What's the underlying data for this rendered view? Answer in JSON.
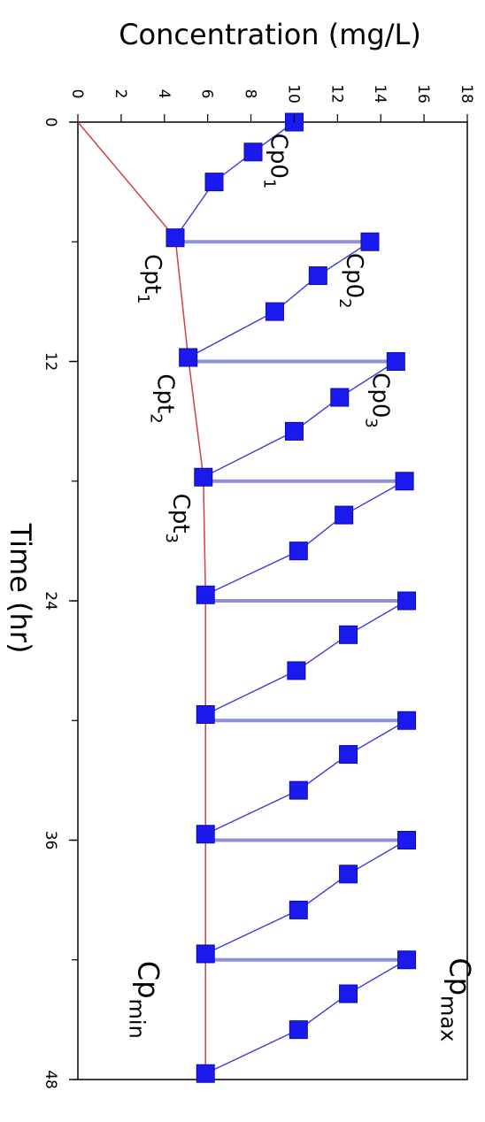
{
  "chart_data": {
    "type": "line",
    "orientation": "rotated-90",
    "xlabel": "Time (hr)",
    "ylabel": "Concentration (mg/L)",
    "xlim": [
      0,
      48
    ],
    "ylim": [
      0,
      18
    ],
    "x_ticks": [
      "0",
      "12",
      "24",
      "36",
      "48"
    ],
    "y_ticks": [
      "0",
      "2",
      "4",
      "6",
      "8",
      "10",
      "12",
      "14",
      "16",
      "18"
    ],
    "grid": false,
    "dosing_interval_hr": 6,
    "series": [
      {
        "name": "",
        "style": "blue line with square markers",
        "color": "#1a1aee",
        "points": [
          [
            0,
            10
          ],
          [
            1.5,
            8.1
          ],
          [
            3,
            6.3
          ],
          [
            5.8,
            4.5
          ],
          [
            6,
            13.5
          ],
          [
            7.7,
            11.1
          ],
          [
            9.5,
            9.1
          ],
          [
            11.8,
            5.1
          ],
          [
            12,
            14.7
          ],
          [
            13.8,
            12.1
          ],
          [
            15.5,
            10
          ],
          [
            17.8,
            5.8
          ],
          [
            18,
            15.1
          ],
          [
            19.7,
            12.3
          ],
          [
            21.5,
            10.2
          ],
          [
            23.7,
            5.9
          ],
          [
            24,
            15.2
          ],
          [
            25.7,
            12.5
          ],
          [
            27.5,
            10.1
          ],
          [
            29.7,
            5.9
          ],
          [
            30,
            15.2
          ],
          [
            31.7,
            12.5
          ],
          [
            33.5,
            10.2
          ],
          [
            35.7,
            5.9
          ],
          [
            36,
            15.2
          ],
          [
            37.7,
            12.5
          ],
          [
            39.5,
            10.2
          ],
          [
            41.7,
            5.9
          ],
          [
            42,
            15.2
          ],
          [
            43.7,
            12.5
          ],
          [
            45.5,
            10.2
          ],
          [
            47.7,
            5.9
          ]
        ]
      },
      {
        "name": "",
        "style": "red line (trough trend)",
        "color": "#d04040",
        "points": [
          [
            0,
            0
          ],
          [
            5.8,
            4.5
          ],
          [
            11.8,
            5.1
          ],
          [
            17.8,
            5.8
          ],
          [
            23.7,
            5.9
          ],
          [
            29.7,
            5.9
          ],
          [
            35.7,
            5.9
          ],
          [
            41.7,
            5.9
          ],
          [
            47.7,
            5.9
          ]
        ]
      }
    ],
    "dose_lines": [
      {
        "x": 6,
        "from": 4.5,
        "to": 13.5
      },
      {
        "x": 12,
        "from": 5.1,
        "to": 14.7
      },
      {
        "x": 18,
        "from": 5.8,
        "to": 15.1
      },
      {
        "x": 24,
        "from": 5.9,
        "to": 15.2
      },
      {
        "x": 30,
        "from": 5.9,
        "to": 15.2
      },
      {
        "x": 36,
        "from": 5.9,
        "to": 15.2
      },
      {
        "x": 42,
        "from": 5.9,
        "to": 15.2
      }
    ],
    "annotations": [
      {
        "text": "Cp0",
        "sub": "1",
        "x": 0,
        "y": 10,
        "side": "above"
      },
      {
        "text": "Cp0",
        "sub": "2",
        "x": 6,
        "y": 13.5,
        "side": "above"
      },
      {
        "text": "Cp0",
        "sub": "3",
        "x": 12,
        "y": 14.7,
        "side": "above"
      },
      {
        "text": "Cpt",
        "sub": "1",
        "x": 6,
        "y": 4.5,
        "side": "below"
      },
      {
        "text": "Cpt",
        "sub": "2",
        "x": 12,
        "y": 5.1,
        "side": "below"
      },
      {
        "text": "Cpt",
        "sub": "3",
        "x": 18,
        "y": 5.8,
        "side": "below"
      },
      {
        "text": "Cp",
        "sub": "max",
        "x": 44,
        "y": 17.2,
        "side": "label"
      },
      {
        "text": "Cp",
        "sub": "min",
        "x": 44,
        "y": 2.8,
        "side": "label"
      }
    ]
  }
}
